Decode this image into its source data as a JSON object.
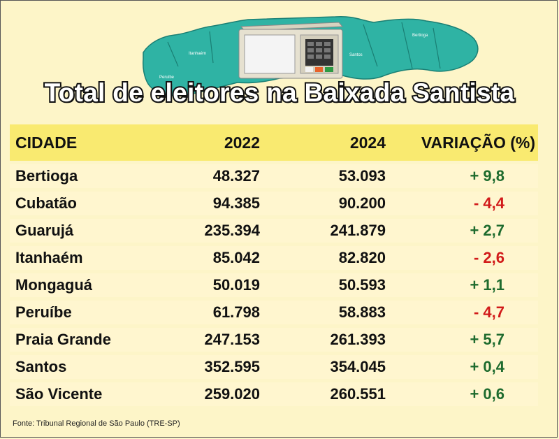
{
  "title": "Total de eleitores na Baixada Santista",
  "map_labels": [
    "Bertioga",
    "Santos",
    "Peruíbe",
    "Itanhaém"
  ],
  "headers": {
    "city": "CIDADE",
    "y2022": "2022",
    "y2024": "2024",
    "variation": "VARIAÇÃO (%)"
  },
  "rows": [
    {
      "city": "Bertioga",
      "y2022": "48.327",
      "y2024": "53.093",
      "variation": "+ 9,8"
    },
    {
      "city": "Cubatão",
      "y2022": "94.385",
      "y2024": "90.200",
      "variation": "- 4,4"
    },
    {
      "city": "Guarujá",
      "y2022": "235.394",
      "y2024": "241.879",
      "variation": "+ 2,7"
    },
    {
      "city": "Itanhaém",
      "y2022": "85.042",
      "y2024": "82.820",
      "variation": "- 2,6"
    },
    {
      "city": "Mongaguá",
      "y2022": "50.019",
      "y2024": "50.593",
      "variation": "+ 1,1"
    },
    {
      "city": "Peruíbe",
      "y2022": "61.798",
      "y2024": "58.883",
      "variation": "- 4,7"
    },
    {
      "city": "Praia Grande",
      "y2022": "247.153",
      "y2024": "261.393",
      "variation": "+ 5,7"
    },
    {
      "city": "Santos",
      "y2022": "352.595",
      "y2024": "354.045",
      "variation": "+ 0,4"
    },
    {
      "city": "São Vicente",
      "y2022": "259.020",
      "y2024": "260.551",
      "variation": "+ 0,6"
    }
  ],
  "colors": {
    "positive": "#1e6b2e",
    "negative": "#d11a1a",
    "map": "#2fb3a4",
    "header_bg": "#f9ea70"
  },
  "source": "Fonte: Tribunal Regional de São Paulo (TRE-SP)"
}
